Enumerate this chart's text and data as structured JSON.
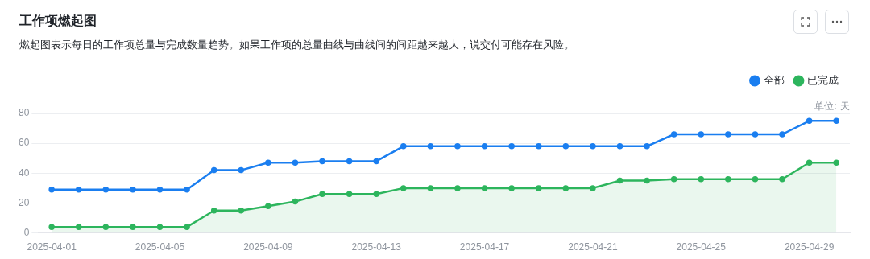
{
  "chart_data": {
    "type": "line",
    "title": "工作项燃起图",
    "subtitle": "燃起图表示每日的工作项总量与完成数量趋势。如果工作项的总量曲线与曲线间的间距越来越大，说交付可能存在风险。",
    "annotations": [
      "单位: 天"
    ],
    "categories": [
      "2025-04-01",
      null,
      null,
      null,
      "2025-04-05",
      null,
      null,
      null,
      "2025-04-09",
      null,
      null,
      null,
      "2025-04-13",
      null,
      null,
      null,
      "2025-04-17",
      null,
      null,
      null,
      "2025-04-21",
      null,
      null,
      null,
      "2025-04-25",
      null,
      null,
      null,
      "2025-04-29",
      null
    ],
    "series": [
      {
        "name": "全部",
        "type": "line",
        "color": "#1a7ef0",
        "values": [
          29,
          29,
          29,
          29,
          29,
          29,
          42,
          42,
          47,
          47,
          48,
          48,
          48,
          58,
          58,
          58,
          58,
          58,
          58,
          58,
          58,
          58,
          58,
          66,
          66,
          66,
          66,
          66,
          75,
          75
        ]
      },
      {
        "name": "已完成",
        "type": "area",
        "color": "#2db55d",
        "values": [
          4,
          4,
          4,
          4,
          4,
          4,
          15,
          15,
          18,
          21,
          26,
          26,
          26,
          30,
          30,
          30,
          30,
          30,
          30,
          30,
          30,
          35,
          35,
          36,
          36,
          36,
          36,
          36,
          47,
          47
        ]
      }
    ],
    "ylim": [
      0,
      80
    ],
    "yticks": [
      0,
      20,
      40,
      60,
      80
    ],
    "grid": "y",
    "legend": "top right",
    "marker": "circle",
    "line_style": "solid"
  }
}
